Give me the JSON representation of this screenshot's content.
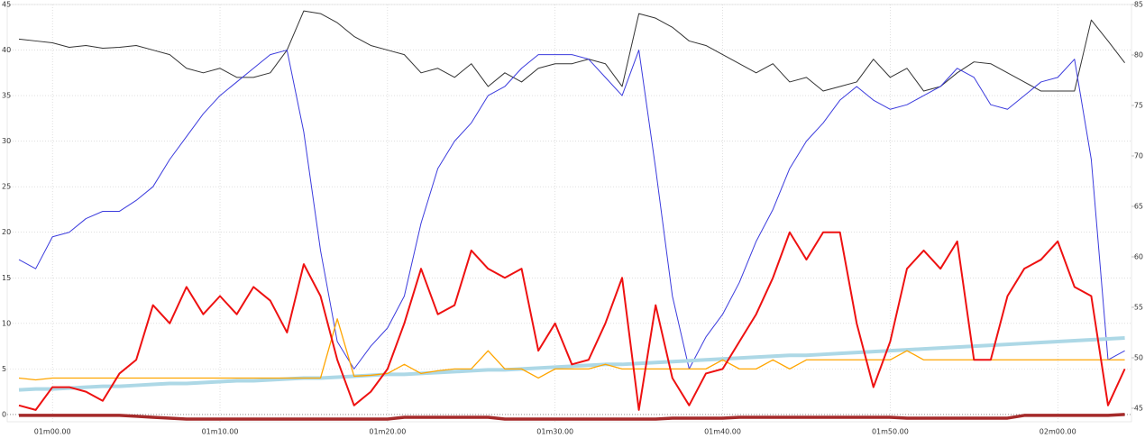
{
  "chart_data": {
    "type": "line",
    "x": [
      58,
      59,
      60,
      61,
      62,
      63,
      64,
      65,
      66,
      67,
      68,
      69,
      70,
      71,
      72,
      73,
      74,
      75,
      76,
      77,
      78,
      79,
      80,
      81,
      82,
      83,
      84,
      85,
      86,
      87,
      88,
      89,
      90,
      91,
      92,
      93,
      94,
      95,
      96,
      97,
      98,
      99,
      100,
      101,
      102,
      103,
      104,
      105,
      106,
      107,
      108,
      109,
      110,
      111,
      112,
      113,
      114,
      115,
      116,
      117,
      118,
      119,
      120,
      121,
      122,
      123,
      124
    ],
    "xlim": [
      57.3,
      124.4
    ],
    "xticks": [
      {
        "value": 60,
        "label": "01m00.00"
      },
      {
        "value": 70,
        "label": "01m10.00"
      },
      {
        "value": 80,
        "label": "01m20.00"
      },
      {
        "value": 90,
        "label": "01m30.00"
      },
      {
        "value": 100,
        "label": "01m40.00"
      },
      {
        "value": 110,
        "label": "01m50.00"
      },
      {
        "value": 120,
        "label": "02m00.00"
      }
    ],
    "ylim": [
      -0.8,
      45
    ],
    "yticks": [
      0,
      5,
      10,
      15,
      20,
      25,
      30,
      35,
      40,
      45
    ],
    "y2lim": [
      43.66,
      85
    ],
    "y2ticks": [
      45,
      50,
      55,
      60,
      65,
      70,
      75,
      80,
      85
    ],
    "grid": true,
    "series": [
      {
        "color": "#333333",
        "linewidth": 1,
        "values": [
          41.2,
          41,
          40.8,
          40.3,
          40.5,
          40.2,
          40.3,
          40.5,
          40,
          39.5,
          38,
          37.5,
          38,
          37,
          37,
          37.5,
          40,
          44.3,
          44,
          43,
          41.5,
          40.5,
          40,
          39.5,
          37.5,
          38,
          37,
          38.5,
          36,
          37.5,
          36.5,
          38,
          38.5,
          38.5,
          39,
          38.5,
          36,
          44,
          43.5,
          42.5,
          41,
          40.5,
          39.5,
          38.5,
          37.5,
          38.5,
          36.5,
          37,
          35.5,
          36,
          36.5,
          39,
          37,
          38,
          35.5,
          36,
          37.5,
          38.7,
          38.5,
          37.5,
          36.5,
          35.5,
          35.5,
          35.5,
          43.3,
          41,
          38.6
        ]
      },
      {
        "color": "#3b3bdd",
        "linewidth": 1,
        "values": [
          17,
          16,
          19.5,
          20,
          21.5,
          22.3,
          22.3,
          23.5,
          25,
          28,
          30.5,
          33,
          35,
          36.5,
          38,
          39.5,
          40,
          31,
          18,
          8,
          5,
          7.5,
          9.5,
          13,
          21,
          27,
          30,
          32,
          35,
          36,
          38,
          39.5,
          39.5,
          39.5,
          39,
          37,
          35,
          40,
          27,
          13,
          5,
          8.5,
          11,
          14.5,
          19,
          22.5,
          27,
          30,
          32,
          34.5,
          36,
          34.5,
          33.5,
          34,
          35,
          36,
          38,
          37,
          34,
          33.5,
          35,
          36.5,
          37,
          39,
          28,
          6,
          7
        ]
      },
      {
        "color": "#add8e6",
        "linewidth": 4,
        "values": [
          2.7,
          2.8,
          2.8,
          2.9,
          3,
          3.1,
          3.1,
          3.2,
          3.3,
          3.4,
          3.4,
          3.5,
          3.6,
          3.7,
          3.7,
          3.8,
          3.9,
          4,
          4,
          4.1,
          4.2,
          4.3,
          4.4,
          4.4,
          4.5,
          4.6,
          4.7,
          4.8,
          4.9,
          4.9,
          5,
          5.1,
          5.2,
          5.3,
          5.4,
          5.5,
          5.5,
          5.6,
          5.7,
          5.8,
          5.9,
          6,
          6.1,
          6.2,
          6.3,
          6.4,
          6.5,
          6.5,
          6.6,
          6.7,
          6.8,
          6.9,
          7,
          7.1,
          7.2,
          7.3,
          7.4,
          7.5,
          7.6,
          7.7,
          7.8,
          7.9,
          8,
          8.1,
          8.2,
          8.3,
          8.4
        ]
      },
      {
        "color": "#ffa500",
        "linewidth": 1.3,
        "values": [
          4,
          3.8,
          4,
          4,
          4,
          4,
          4,
          4,
          4,
          4,
          4,
          4,
          4,
          4,
          4,
          4,
          4,
          4,
          4,
          10.5,
          4.2,
          4.3,
          4.5,
          5.5,
          4.5,
          4.8,
          5,
          5,
          7,
          5,
          5,
          4,
          5,
          5,
          5,
          5.5,
          5,
          5,
          5,
          5,
          5,
          5,
          6,
          5,
          5,
          6,
          5,
          6,
          6,
          6,
          6,
          6,
          6,
          7,
          6,
          6,
          6,
          6,
          6,
          6,
          6,
          6,
          6,
          6,
          6,
          6,
          6
        ]
      },
      {
        "color": "#ee1111",
        "linewidth": 2,
        "values": [
          1,
          0.5,
          3,
          3,
          2.5,
          1.5,
          4.5,
          6,
          12,
          10,
          14,
          11,
          13,
          11,
          14,
          12.5,
          9,
          16.5,
          13,
          6,
          1,
          2.5,
          5,
          10,
          16,
          11,
          12,
          18,
          16,
          15,
          16,
          7,
          10,
          5.5,
          6,
          10,
          15,
          0.5,
          12,
          4,
          1,
          4.5,
          5,
          8,
          11,
          15,
          20,
          17,
          20,
          20,
          10,
          3,
          8,
          16,
          18,
          16,
          19,
          6,
          6,
          13,
          16,
          17,
          19,
          14,
          13,
          1,
          5
        ]
      },
      {
        "color": "#a52a2a",
        "linewidth": 3.5,
        "values": [
          -0.1,
          -0.1,
          -0.1,
          -0.1,
          -0.1,
          -0.1,
          -0.1,
          -0.2,
          -0.3,
          -0.4,
          -0.5,
          -0.5,
          -0.5,
          -0.5,
          -0.5,
          -0.5,
          -0.5,
          -0.5,
          -0.5,
          -0.5,
          -0.5,
          -0.5,
          -0.5,
          -0.3,
          -0.3,
          -0.3,
          -0.3,
          -0.3,
          -0.3,
          -0.5,
          -0.5,
          -0.5,
          -0.5,
          -0.5,
          -0.5,
          -0.5,
          -0.5,
          -0.5,
          -0.5,
          -0.4,
          -0.4,
          -0.4,
          -0.4,
          -0.3,
          -0.3,
          -0.3,
          -0.3,
          -0.3,
          -0.3,
          -0.3,
          -0.3,
          -0.3,
          -0.3,
          -0.4,
          -0.4,
          -0.4,
          -0.4,
          -0.4,
          -0.4,
          -0.4,
          -0.1,
          -0.1,
          -0.1,
          -0.1,
          -0.1,
          -0.1,
          0
        ]
      }
    ]
  }
}
